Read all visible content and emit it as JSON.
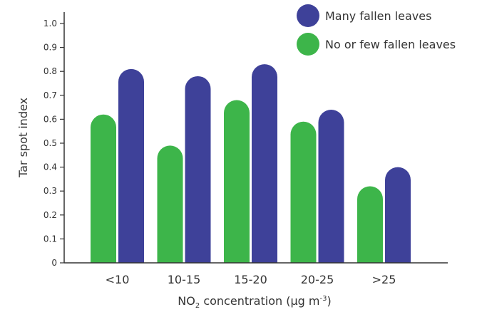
{
  "chart_data": {
    "type": "bar",
    "title": "",
    "xlabel": {
      "prefix": "NO",
      "sub": "2",
      "middle": " concentration (µg m",
      "sup": "-3",
      "suffix": ")"
    },
    "ylabel": "Tar spot index",
    "ylim": [
      0,
      1.0
    ],
    "yticks": [
      "0",
      "0.1",
      "0.2",
      "0.3",
      "0.4",
      "0.5",
      "0.6",
      "0.7",
      "0.8",
      "0.9",
      "1.0"
    ],
    "grid": false,
    "legend_position": "top-right",
    "categories": [
      "<10",
      "10-15",
      "15-20",
      "20-25",
      ">25"
    ],
    "series": [
      {
        "name": "No or few fallen leaves",
        "color": "#3db54a",
        "values": [
          0.62,
          0.49,
          0.68,
          0.59,
          0.32
        ]
      },
      {
        "name": "Many fallen leaves",
        "color": "#3e4199",
        "values": [
          0.81,
          0.78,
          0.83,
          0.64,
          0.4
        ]
      }
    ],
    "legend_order": [
      1,
      0
    ]
  }
}
